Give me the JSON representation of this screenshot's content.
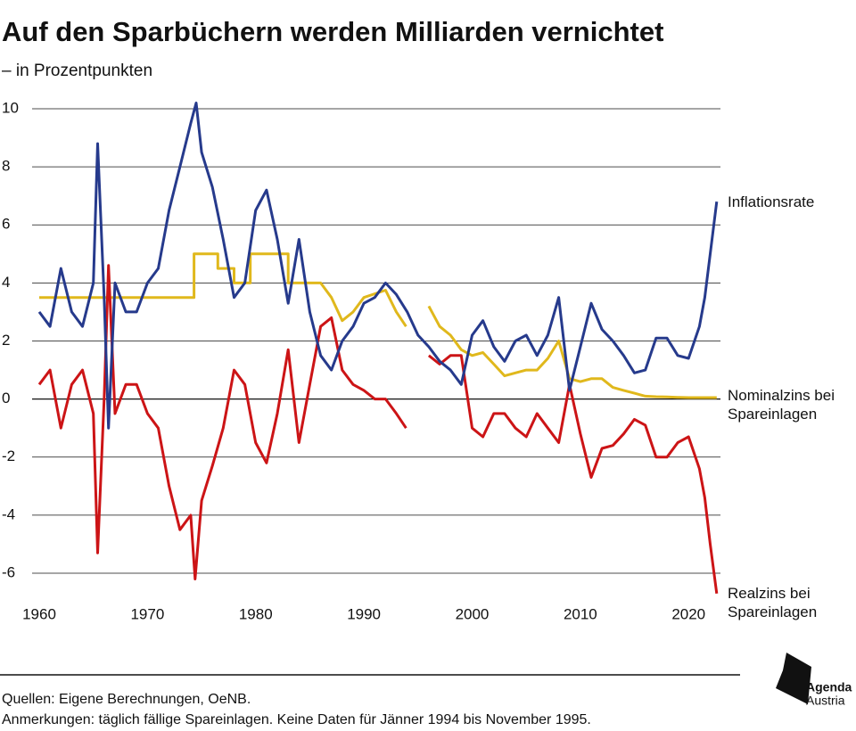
{
  "chart_data": {
    "type": "line",
    "title": "Auf den Sparbüchern werden Milliarden vernichtet",
    "subtitle": "– in Prozentpunkten",
    "xlim": [
      1960,
      2022.7
    ],
    "ylim": [
      -6,
      10
    ],
    "xticks": [
      1960,
      1970,
      1980,
      1990,
      2000,
      2010,
      2020
    ],
    "yticks": [
      -6,
      -4,
      -2,
      0,
      2,
      4,
      6,
      8,
      10
    ],
    "grid": true,
    "series": [
      {
        "name": "Inflationsrate",
        "color": "#263a8c",
        "x": [
          1960,
          1961,
          1962,
          1963,
          1964,
          1965,
          1965.4,
          1966,
          1966.4,
          1967,
          1968,
          1969,
          1970,
          1971,
          1972,
          1973,
          1974,
          1974.5,
          1975,
          1976,
          1977,
          1978,
          1979,
          1980,
          1981,
          1982,
          1983,
          1984,
          1985,
          1986,
          1987,
          1988,
          1989,
          1990,
          1991,
          1992,
          1993,
          1994,
          1995,
          1996,
          1997,
          1998,
          1999,
          2000,
          2001,
          2002,
          2003,
          2004,
          2005,
          2006,
          2007,
          2008,
          2009,
          2010,
          2011,
          2012,
          2013,
          2014,
          2015,
          2016,
          2017,
          2018,
          2019,
          2020,
          2021,
          2021.5,
          2022,
          2022.6
        ],
        "values": [
          3.0,
          2.5,
          4.5,
          3.0,
          2.5,
          4.0,
          8.8,
          3.5,
          -1.0,
          4.0,
          3.0,
          3.0,
          4.0,
          4.5,
          6.5,
          8.0,
          9.5,
          10.2,
          8.5,
          7.3,
          5.5,
          3.5,
          4.0,
          6.5,
          7.2,
          5.5,
          3.3,
          5.5,
          3.0,
          1.5,
          1.0,
          2.0,
          2.5,
          3.3,
          3.5,
          4.0,
          3.6,
          3.0,
          2.2,
          1.8,
          1.3,
          1.0,
          0.5,
          2.2,
          2.7,
          1.8,
          1.3,
          2.0,
          2.2,
          1.5,
          2.2,
          3.5,
          0.3,
          1.8,
          3.3,
          2.4,
          2.0,
          1.5,
          0.9,
          1.0,
          2.1,
          2.1,
          1.5,
          1.4,
          2.5,
          3.5,
          5.0,
          6.8
        ]
      },
      {
        "name": "Nominalzins bei Spareinlagen",
        "color": "#e0b81c",
        "x": [
          1960,
          1974.3,
          1974.3,
          1976.5,
          1976.5,
          1978,
          1978,
          1979.5,
          1979.5,
          1983,
          1983,
          1986,
          1987,
          1988,
          1989,
          1990,
          1992,
          1993,
          1993.9,
          1995,
          1996,
          1997,
          1998,
          1999,
          2000,
          2001,
          2002,
          2003,
          2004,
          2005,
          2006,
          2007,
          2008,
          2009,
          2010,
          2011,
          2012,
          2013,
          2014,
          2015,
          2016,
          2017,
          2018,
          2019,
          2020,
          2022.6
        ],
        "values": [
          3.5,
          3.5,
          5.0,
          5.0,
          4.5,
          4.5,
          4.0,
          4.0,
          5.0,
          5.0,
          4.0,
          4.0,
          3.5,
          2.7,
          3.0,
          3.5,
          3.75,
          3.0,
          2.5,
          null,
          3.2,
          2.5,
          2.2,
          1.7,
          1.5,
          1.6,
          1.2,
          0.8,
          0.9,
          1.0,
          1.0,
          1.4,
          2.0,
          0.7,
          0.6,
          0.7,
          0.7,
          0.4,
          0.3,
          0.2,
          0.1,
          0.08,
          0.07,
          0.06,
          0.05,
          0.05
        ]
      },
      {
        "name": "Realzins bei Spareinlagen",
        "color": "#cc1416",
        "x": [
          1960,
          1961,
          1962,
          1963,
          1964,
          1965,
          1965.4,
          1966,
          1966.4,
          1967,
          1968,
          1969,
          1970,
          1971,
          1972,
          1973,
          1974,
          1974.4,
          1975,
          1976,
          1977,
          1978,
          1979,
          1980,
          1981,
          1982,
          1983,
          1984,
          1985,
          1986,
          1987,
          1988,
          1989,
          1990,
          1991,
          1992,
          1993,
          1993.9,
          1995,
          1996,
          1997,
          1998,
          1999,
          2000,
          2001,
          2002,
          2003,
          2004,
          2005,
          2006,
          2007,
          2008,
          2009,
          2010,
          2011,
          2012,
          2013,
          2014,
          2015,
          2016,
          2017,
          2018,
          2019,
          2020,
          2021,
          2021.5,
          2022,
          2022.6
        ],
        "values": [
          0.5,
          1.0,
          -1.0,
          0.5,
          1.0,
          -0.5,
          -5.3,
          0,
          4.6,
          -0.5,
          0.5,
          0.5,
          -0.5,
          -1.0,
          -3.0,
          -4.5,
          -4.0,
          -6.2,
          -3.5,
          -2.3,
          -1.0,
          1.0,
          0.5,
          -1.5,
          -2.2,
          -0.5,
          1.7,
          -1.5,
          0.5,
          2.5,
          2.8,
          1.0,
          0.5,
          0.3,
          0.0,
          0.0,
          -0.5,
          -1.0,
          null,
          1.5,
          1.2,
          1.5,
          1.5,
          -1.0,
          -1.3,
          -0.5,
          -0.5,
          -1.0,
          -1.3,
          -0.5,
          -1.0,
          -1.5,
          0.5,
          -1.2,
          -2.7,
          -1.7,
          -1.6,
          -1.2,
          -0.7,
          -0.9,
          -2.0,
          -2.0,
          -1.5,
          -1.3,
          -2.4,
          -3.4,
          -5.0,
          -6.7
        ]
      }
    ]
  },
  "footer": {
    "sources": "Quellen: Eigene Berechnungen, OeNB.",
    "notes": "Anmerkungen: täglich fällige Spareinlagen. Keine Daten für Jänner 1994 bis November 1995.",
    "logo": [
      "Agenda",
      "Austria"
    ]
  }
}
